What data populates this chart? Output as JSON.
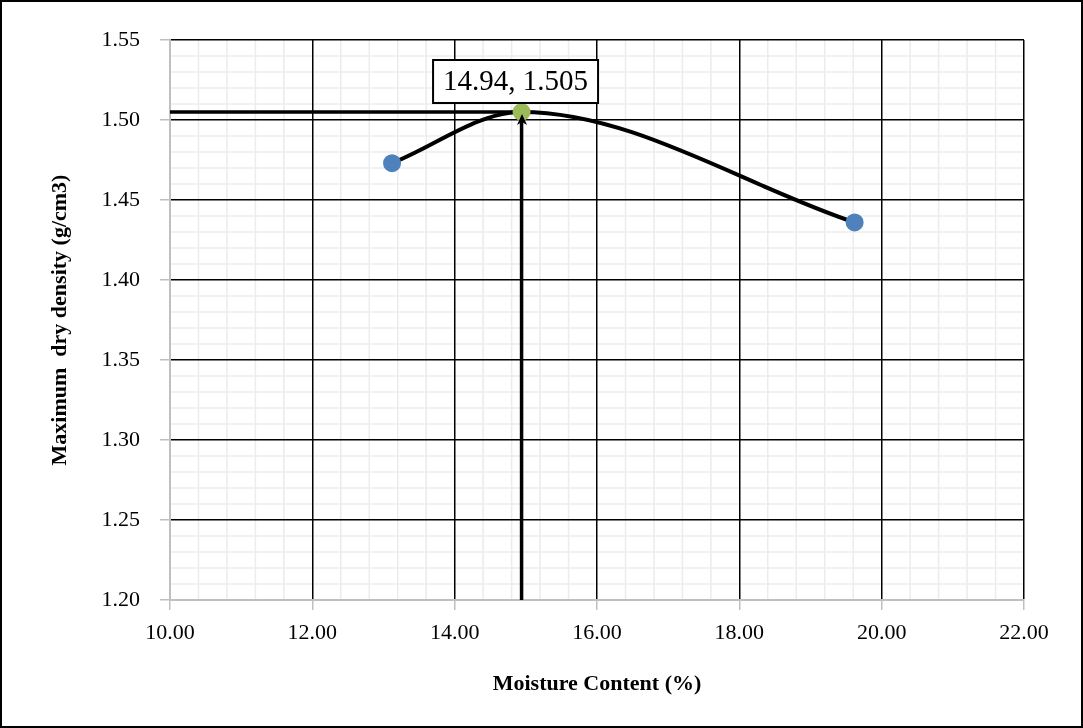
{
  "chart_data": {
    "type": "line",
    "xlabel": "Moisture Content (%)",
    "ylabel": "Maximum  dry density (g/cm3)",
    "x": [
      13.12,
      14.94,
      19.62
    ],
    "values": [
      1.473,
      1.505,
      1.436
    ],
    "color": "#000000",
    "colors": [
      "#4f81bd",
      "#9bbb59",
      "#4f81bd"
    ],
    "marker": "circle",
    "grid": true,
    "xlim": [
      10,
      22
    ],
    "xticks": [
      {
        "value": 10,
        "label": "10.00"
      },
      {
        "value": 12,
        "label": "12.00"
      },
      {
        "value": 14,
        "label": "14.00"
      },
      {
        "value": 16,
        "label": "16.00"
      },
      {
        "value": 18,
        "label": "18.00"
      },
      {
        "value": 20,
        "label": "20.00"
      },
      {
        "value": 22,
        "label": "22.00"
      }
    ],
    "ylim": [
      1.2,
      1.55
    ],
    "yticks": [
      {
        "value": 1.2,
        "label": "1.20"
      },
      {
        "value": 1.25,
        "label": "1.25"
      },
      {
        "value": 1.3,
        "label": "1.30"
      },
      {
        "value": 1.35,
        "label": "1.35"
      },
      {
        "value": 1.4,
        "label": "1.40"
      },
      {
        "value": 1.45,
        "label": "1.45"
      },
      {
        "value": 1.5,
        "label": "1.50"
      },
      {
        "value": 1.55,
        "label": "1.55"
      }
    ],
    "ref_lines": [
      {
        "axis": "y",
        "value": 1.505,
        "color": "#000000"
      },
      {
        "axis": "x",
        "value": 14.94,
        "color": "#000000"
      }
    ],
    "annotations": [
      {
        "text": "14.94, 1.505",
        "x": 14.94,
        "y": 1.505
      }
    ]
  }
}
